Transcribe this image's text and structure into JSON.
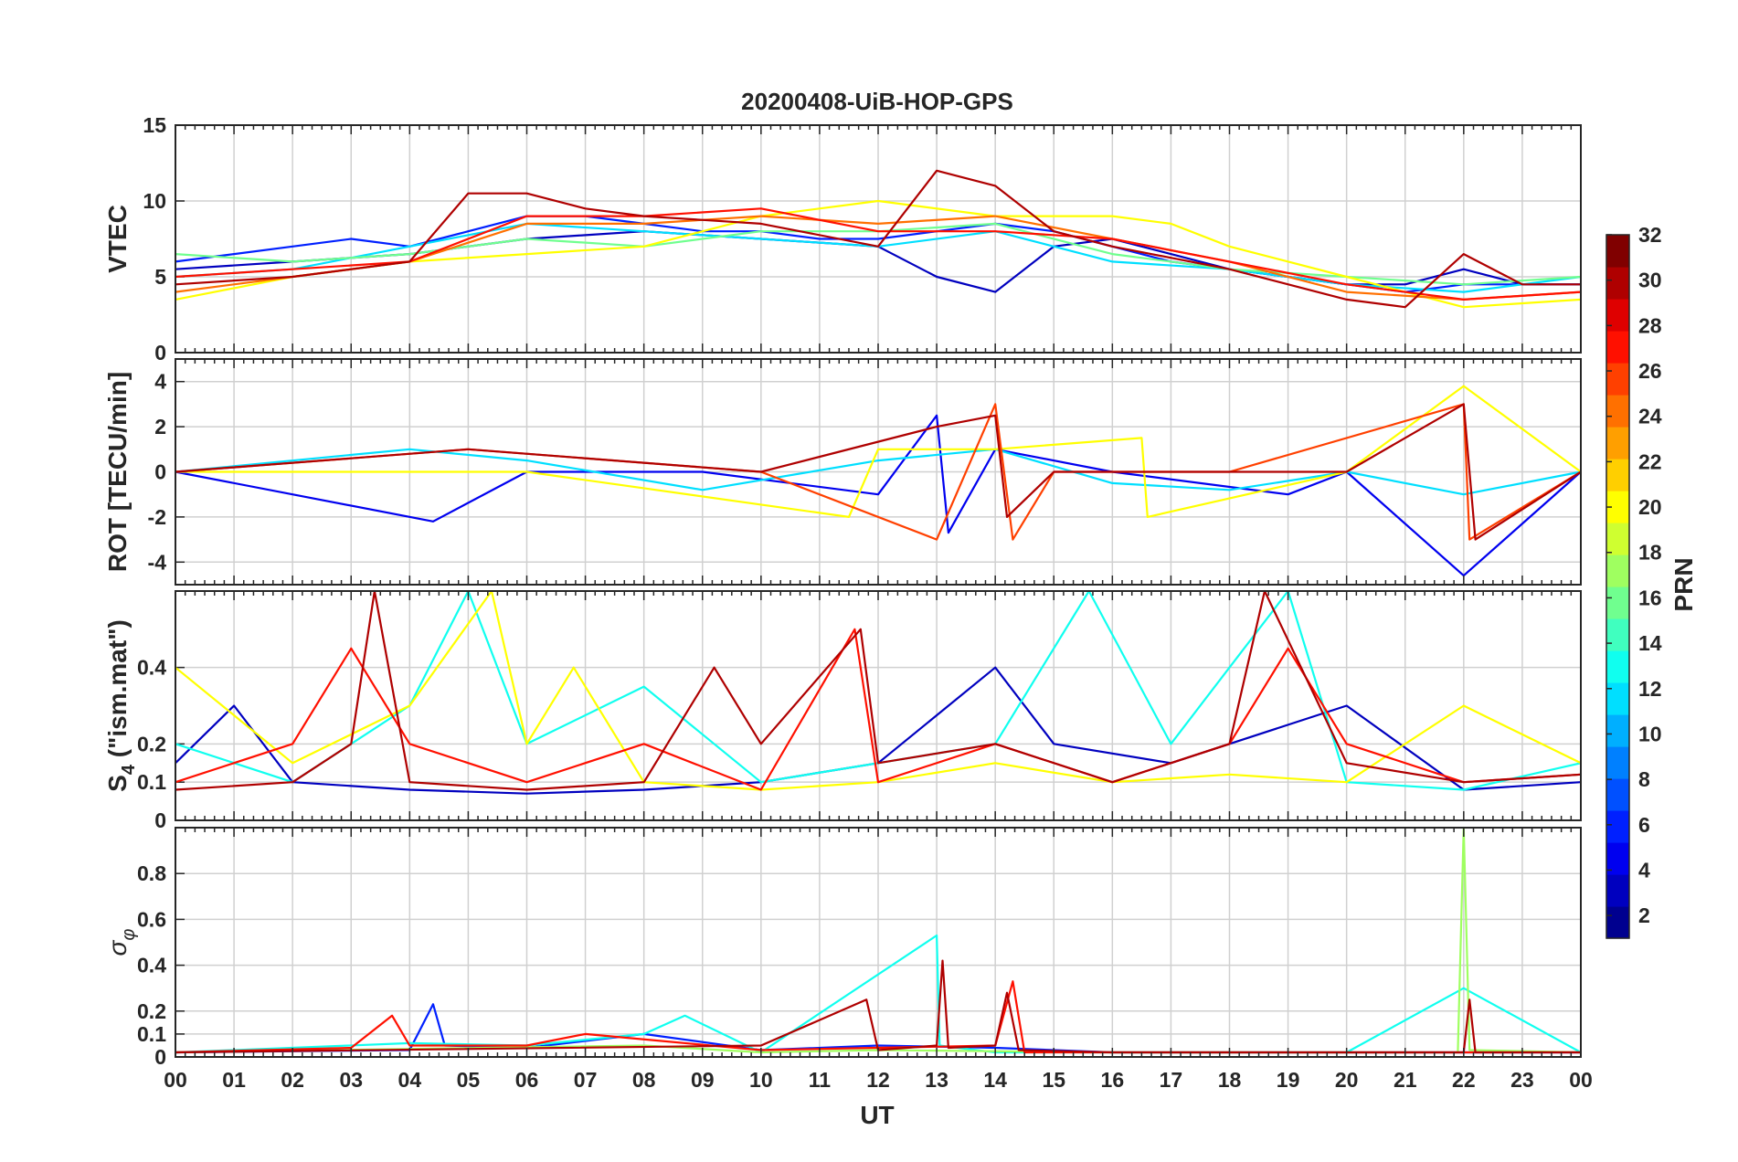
{
  "chart_data": {
    "type": "line",
    "title": "20200408-UiB-HOP-GPS",
    "xlabel": "UT",
    "x_tick_labels": [
      "00",
      "01",
      "02",
      "03",
      "04",
      "05",
      "06",
      "07",
      "08",
      "09",
      "10",
      "11",
      "12",
      "13",
      "14",
      "15",
      "16",
      "17",
      "18",
      "19",
      "20",
      "21",
      "22",
      "23",
      "00"
    ],
    "x_range_hours": [
      0,
      24
    ],
    "grid": true,
    "colorbar": {
      "label": "PRN",
      "range": [
        1,
        32
      ],
      "tick_labels": [
        "2",
        "4",
        "6",
        "8",
        "10",
        "12",
        "14",
        "16",
        "18",
        "20",
        "22",
        "24",
        "26",
        "28",
        "30",
        "32"
      ],
      "colormap": "jet",
      "colors": [
        "#00008F",
        "#0000BF",
        "#0000EF",
        "#0020FF",
        "#0050FF",
        "#0080FF",
        "#00AFFF",
        "#00DFFF",
        "#10FFEF",
        "#40FFBF",
        "#70FF8F",
        "#9FFF60",
        "#CFFF30",
        "#FFFF00",
        "#FFCF00",
        "#FF9F00",
        "#FF7000",
        "#FF4000",
        "#FF1000",
        "#DF0000",
        "#AF0000",
        "#800000"
      ]
    },
    "panels": [
      {
        "ylabel": "VTEC",
        "ylim": [
          0,
          15
        ],
        "y_tick_labels": [
          "0",
          "5",
          "10",
          "15"
        ],
        "series": [
          {
            "prn": 2,
            "x": [
              0,
              2,
              4,
              6,
              8,
              10,
              12,
              13,
              14,
              15,
              16,
              17,
              18,
              19,
              20,
              21,
              22,
              23,
              24
            ],
            "values": [
              5.5,
              6,
              6.5,
              7.5,
              8,
              7.5,
              7,
              5,
              4,
              7,
              7.5,
              6.5,
              5.5,
              5,
              4.5,
              4.5,
              5.5,
              4.5,
              4.5
            ]
          },
          {
            "prn": 6,
            "x": [
              0,
              1,
              2,
              3,
              4,
              5,
              6,
              7,
              8,
              9,
              10,
              11,
              12,
              13,
              14,
              15,
              16,
              17,
              18,
              19,
              20,
              21,
              22,
              23,
              24
            ],
            "values": [
              6,
              6.5,
              7,
              7.5,
              7,
              8,
              9,
              9,
              8.5,
              8,
              8,
              7.5,
              7.5,
              8,
              8.5,
              8,
              7,
              6,
              5.5,
              5,
              4.5,
              4,
              4.5,
              4.5,
              4.5
            ]
          },
          {
            "prn": 12,
            "x": [
              0,
              2,
              4,
              6,
              8,
              10,
              12,
              14,
              16,
              18,
              20,
              22,
              24
            ],
            "values": [
              5,
              5.5,
              7,
              8.5,
              8,
              7.5,
              7,
              8,
              6,
              5.5,
              4.5,
              4,
              5
            ]
          },
          {
            "prn": 16,
            "x": [
              0,
              2,
              4,
              6,
              8,
              10,
              12,
              14,
              16,
              18,
              20,
              22,
              24
            ],
            "values": [
              6.5,
              6,
              6.5,
              7.5,
              7,
              8,
              8,
              8.5,
              6.5,
              5.5,
              5,
              4.5,
              5
            ]
          },
          {
            "prn": 20,
            "x": [
              0,
              2,
              4,
              6,
              8,
              10,
              12,
              14,
              16,
              17,
              18,
              20,
              22,
              24
            ],
            "values": [
              3.5,
              5,
              6,
              6.5,
              7,
              9,
              10,
              9,
              9,
              8.5,
              7,
              5,
              3,
              3.5
            ]
          },
          {
            "prn": 24,
            "x": [
              0,
              2,
              4,
              6,
              8,
              10,
              12,
              14,
              16,
              18,
              20,
              22,
              24
            ],
            "values": [
              4,
              5,
              6,
              8.5,
              8.5,
              9,
              8.5,
              9,
              7.5,
              6,
              4,
              3.5,
              4
            ]
          },
          {
            "prn": 28,
            "x": [
              0,
              2,
              4,
              6,
              8,
              10,
              12,
              14,
              16,
              18,
              20,
              22,
              24
            ],
            "values": [
              5,
              5.5,
              6,
              9,
              9,
              9.5,
              8,
              8,
              7.5,
              6,
              4.5,
              3.5,
              4
            ]
          },
          {
            "prn": 31,
            "x": [
              0,
              2,
              4,
              5,
              6,
              7,
              8,
              10,
              12,
              13,
              14,
              15,
              16,
              18,
              20,
              21,
              22,
              23,
              24
            ],
            "values": [
              4.5,
              5,
              6,
              10.5,
              10.5,
              9.5,
              9,
              8.5,
              7,
              12,
              11,
              8,
              7,
              5.5,
              3.5,
              3,
              6.5,
              4.5,
              4.5
            ]
          }
        ]
      },
      {
        "ylabel": "ROT [TECU/min]",
        "ylim": [
          -5,
          5
        ],
        "y_tick_labels": [
          "-4",
          "-2",
          "0",
          "2",
          "4"
        ],
        "series": [
          {
            "prn": 4,
            "x": [
              0,
              4.4,
              6,
              9,
              12,
              13,
              13.2,
              14,
              16,
              19,
              20,
              22,
              24
            ],
            "values": [
              0,
              -2.2,
              0,
              0,
              -1,
              2.5,
              -2.7,
              1,
              0,
              -1,
              0,
              -4.6,
              0
            ]
          },
          {
            "prn": 12,
            "x": [
              0,
              4,
              6,
              9,
              12,
              14,
              16,
              18,
              20,
              22,
              24
            ],
            "values": [
              0,
              1,
              0.5,
              -0.8,
              0.5,
              1,
              -0.5,
              -0.8,
              0,
              -1,
              0
            ]
          },
          {
            "prn": 20,
            "x": [
              0,
              6,
              11.5,
              12,
              14,
              16.5,
              16.6,
              20,
              22,
              24
            ],
            "values": [
              0,
              0,
              -2,
              1,
              1,
              1.5,
              -2,
              0,
              3.8,
              0
            ]
          },
          {
            "prn": 26,
            "x": [
              0,
              5,
              10,
              13,
              14,
              14.3,
              15,
              18,
              22,
              22.1,
              24
            ],
            "values": [
              0,
              1,
              0,
              -3,
              3,
              -3,
              0,
              0,
              3,
              -3,
              0
            ]
          },
          {
            "prn": 31,
            "x": [
              0,
              5,
              10,
              13,
              14,
              14.2,
              15,
              20,
              22,
              22.2,
              24
            ],
            "values": [
              0,
              1,
              0,
              2,
              2.5,
              -2,
              0,
              0,
              3,
              -3,
              0
            ]
          }
        ]
      },
      {
        "ylabel": "S4 (\"ism.mat\")",
        "ylabel_main": "S",
        "ylabel_sub": "4",
        "ylabel_rest": " (\"ism.mat\")",
        "ylim": [
          0,
          0.6
        ],
        "y_tick_labels": [
          "0",
          "0.1",
          "0.2",
          "0.4"
        ],
        "series": [
          {
            "prn": 3,
            "x": [
              0,
              1,
              2,
              4,
              6,
              8,
              10,
              12,
              14,
              15,
              17,
              18,
              20,
              22,
              24
            ],
            "values": [
              0.15,
              0.3,
              0.1,
              0.08,
              0.07,
              0.08,
              0.1,
              0.15,
              0.4,
              0.2,
              0.15,
              0.2,
              0.3,
              0.08,
              0.1
            ]
          },
          {
            "prn": 13,
            "x": [
              0,
              2,
              4,
              5,
              6,
              8,
              10,
              12,
              14,
              15.6,
              17,
              19,
              20,
              22,
              24
            ],
            "values": [
              0.2,
              0.1,
              0.3,
              0.6,
              0.2,
              0.35,
              0.1,
              0.15,
              0.2,
              0.6,
              0.2,
              0.6,
              0.1,
              0.08,
              0.15
            ]
          },
          {
            "prn": 20,
            "x": [
              0,
              2,
              4,
              5.4,
              6,
              6.8,
              8,
              10,
              12,
              14,
              16,
              18,
              20,
              22,
              24
            ],
            "values": [
              0.4,
              0.15,
              0.3,
              0.6,
              0.2,
              0.4,
              0.1,
              0.08,
              0.1,
              0.15,
              0.1,
              0.12,
              0.1,
              0.3,
              0.15
            ]
          },
          {
            "prn": 27,
            "x": [
              0,
              2,
              3,
              4,
              6,
              8,
              10,
              11.6,
              12,
              14,
              16,
              18,
              19,
              20,
              22,
              24
            ],
            "values": [
              0.1,
              0.2,
              0.45,
              0.2,
              0.1,
              0.2,
              0.08,
              0.5,
              0.1,
              0.2,
              0.1,
              0.2,
              0.45,
              0.2,
              0.1,
              0.12
            ]
          },
          {
            "prn": 31,
            "x": [
              0,
              2,
              3,
              3.4,
              4,
              6,
              8,
              9.2,
              10,
              11.7,
              12,
              14,
              16,
              18,
              18.6,
              20,
              22,
              24
            ],
            "values": [
              0.08,
              0.1,
              0.2,
              0.6,
              0.1,
              0.08,
              0.1,
              0.4,
              0.2,
              0.5,
              0.15,
              0.2,
              0.1,
              0.2,
              0.6,
              0.15,
              0.1,
              0.12
            ]
          }
        ]
      },
      {
        "ylabel": "σ_φ",
        "ylabel_main": "σ",
        "ylabel_sub": "φ",
        "ylim": [
          0,
          1
        ],
        "y_tick_labels": [
          "0",
          "0.1",
          "0.2",
          "0.4",
          "0.6",
          "0.8"
        ],
        "series": [
          {
            "prn": 5,
            "x": [
              0,
              4,
              4.4,
              4.6,
              6,
              8,
              10,
              12,
              14,
              16,
              20,
              22,
              24
            ],
            "values": [
              0.02,
              0.03,
              0.23,
              0.05,
              0.04,
              0.1,
              0.03,
              0.05,
              0.04,
              0.02,
              0.02,
              0.02,
              0.02
            ]
          },
          {
            "prn": 13,
            "x": [
              0,
              4,
              6,
              8,
              8.7,
              10,
              13,
              13.05,
              14,
              16,
              18,
              20,
              22,
              24
            ],
            "values": [
              0.02,
              0.06,
              0.05,
              0.1,
              0.18,
              0.02,
              0.53,
              0.05,
              0.02,
              0.02,
              0.02,
              0.02,
              0.3,
              0.02
            ]
          },
          {
            "prn": 17,
            "x": [
              0,
              8,
              10,
              12,
              16,
              20,
              21.9,
              22,
              22.1,
              24
            ],
            "values": [
              0.02,
              0.05,
              0.02,
              0.03,
              0.02,
              0.02,
              0.02,
              1.0,
              0.03,
              0.02
            ]
          },
          {
            "prn": 27,
            "x": [
              0,
              3,
              3.7,
              4,
              6,
              7,
              10,
              14,
              14.3,
              14.5,
              18,
              22,
              24
            ],
            "values": [
              0.02,
              0.04,
              0.18,
              0.05,
              0.05,
              0.1,
              0.03,
              0.05,
              0.33,
              0.02,
              0.02,
              0.02,
              0.02
            ]
          },
          {
            "prn": 31,
            "x": [
              0,
              10,
              11.8,
              12,
              13,
              13.1,
              13.2,
              14,
              14.2,
              14.4,
              16,
              22,
              22.1,
              22.2,
              24
            ],
            "values": [
              0.02,
              0.05,
              0.25,
              0.03,
              0.05,
              0.42,
              0.04,
              0.05,
              0.28,
              0.03,
              0.02,
              0.02,
              0.25,
              0.02,
              0.02
            ]
          }
        ]
      }
    ]
  }
}
